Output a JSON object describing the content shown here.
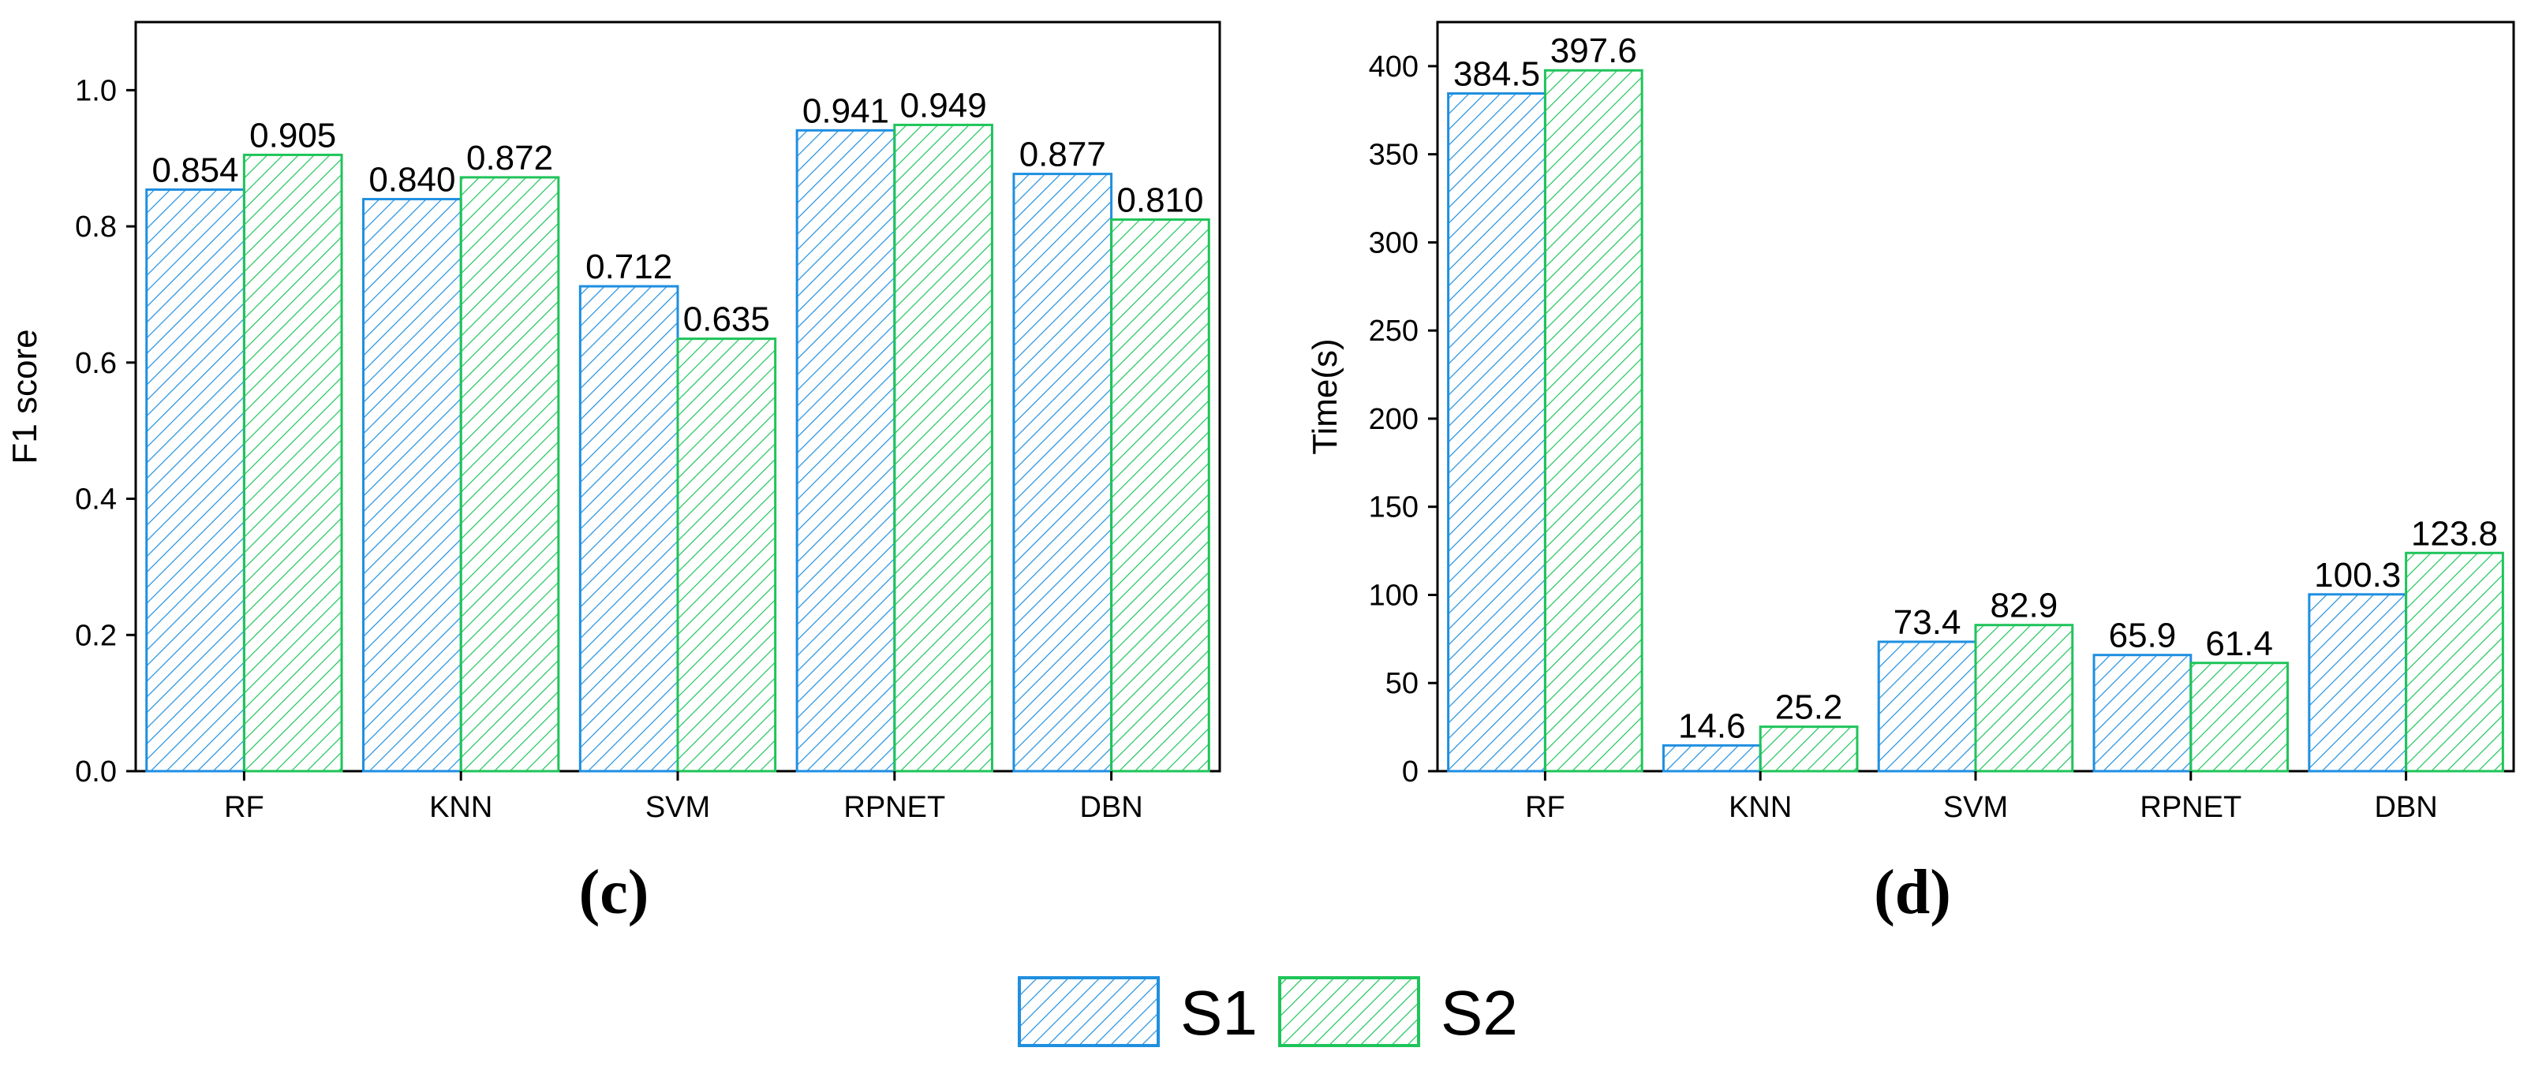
{
  "chart_data": [
    {
      "type": "bar",
      "panel_label": "(c)",
      "ylabel": "F1 score",
      "xlabel": "",
      "ylim": [
        0,
        1.1
      ],
      "yticks": [
        "0.0",
        "0.2",
        "0.4",
        "0.6",
        "0.8",
        "1.0"
      ],
      "categories": [
        "RF",
        "KNN",
        "SVM",
        "RPNET",
        "DBN"
      ],
      "series": [
        {
          "name": "S1",
          "values": [
            0.854,
            0.84,
            0.712,
            0.941,
            0.877
          ],
          "labels": [
            "0.854",
            "0.840",
            "0.712",
            "0.941",
            "0.877"
          ]
        },
        {
          "name": "S2",
          "values": [
            0.905,
            0.872,
            0.635,
            0.949,
            0.81
          ],
          "labels": [
            "0.905",
            "0.872",
            "0.635",
            "0.949",
            "0.810"
          ]
        }
      ]
    },
    {
      "type": "bar",
      "panel_label": "(d)",
      "ylabel": "Time(s)",
      "xlabel": "",
      "ylim": [
        0,
        425
      ],
      "yticks": [
        "0",
        "50",
        "100",
        "150",
        "200",
        "250",
        "300",
        "350",
        "400"
      ],
      "categories": [
        "RF",
        "KNN",
        "SVM",
        "RPNET",
        "DBN"
      ],
      "series": [
        {
          "name": "S1",
          "values": [
            384.5,
            14.6,
            73.4,
            65.9,
            100.3
          ],
          "labels": [
            "384.5",
            "14.6",
            "73.4",
            "65.9",
            "100.3"
          ]
        },
        {
          "name": "S2",
          "values": [
            397.6,
            25.2,
            82.9,
            61.4,
            123.8
          ],
          "labels": [
            "397.6",
            "25.2",
            "82.9",
            "61.4",
            "123.8"
          ]
        }
      ]
    }
  ],
  "legend": {
    "position": "bottom-center",
    "items": [
      {
        "name": "S1",
        "color": "#1f8fe0"
      },
      {
        "name": "S2",
        "color": "#1fc45a"
      }
    ]
  },
  "colors": {
    "S1": "#1f8fe0",
    "S2": "#1fc45a",
    "axis": "#000000"
  }
}
